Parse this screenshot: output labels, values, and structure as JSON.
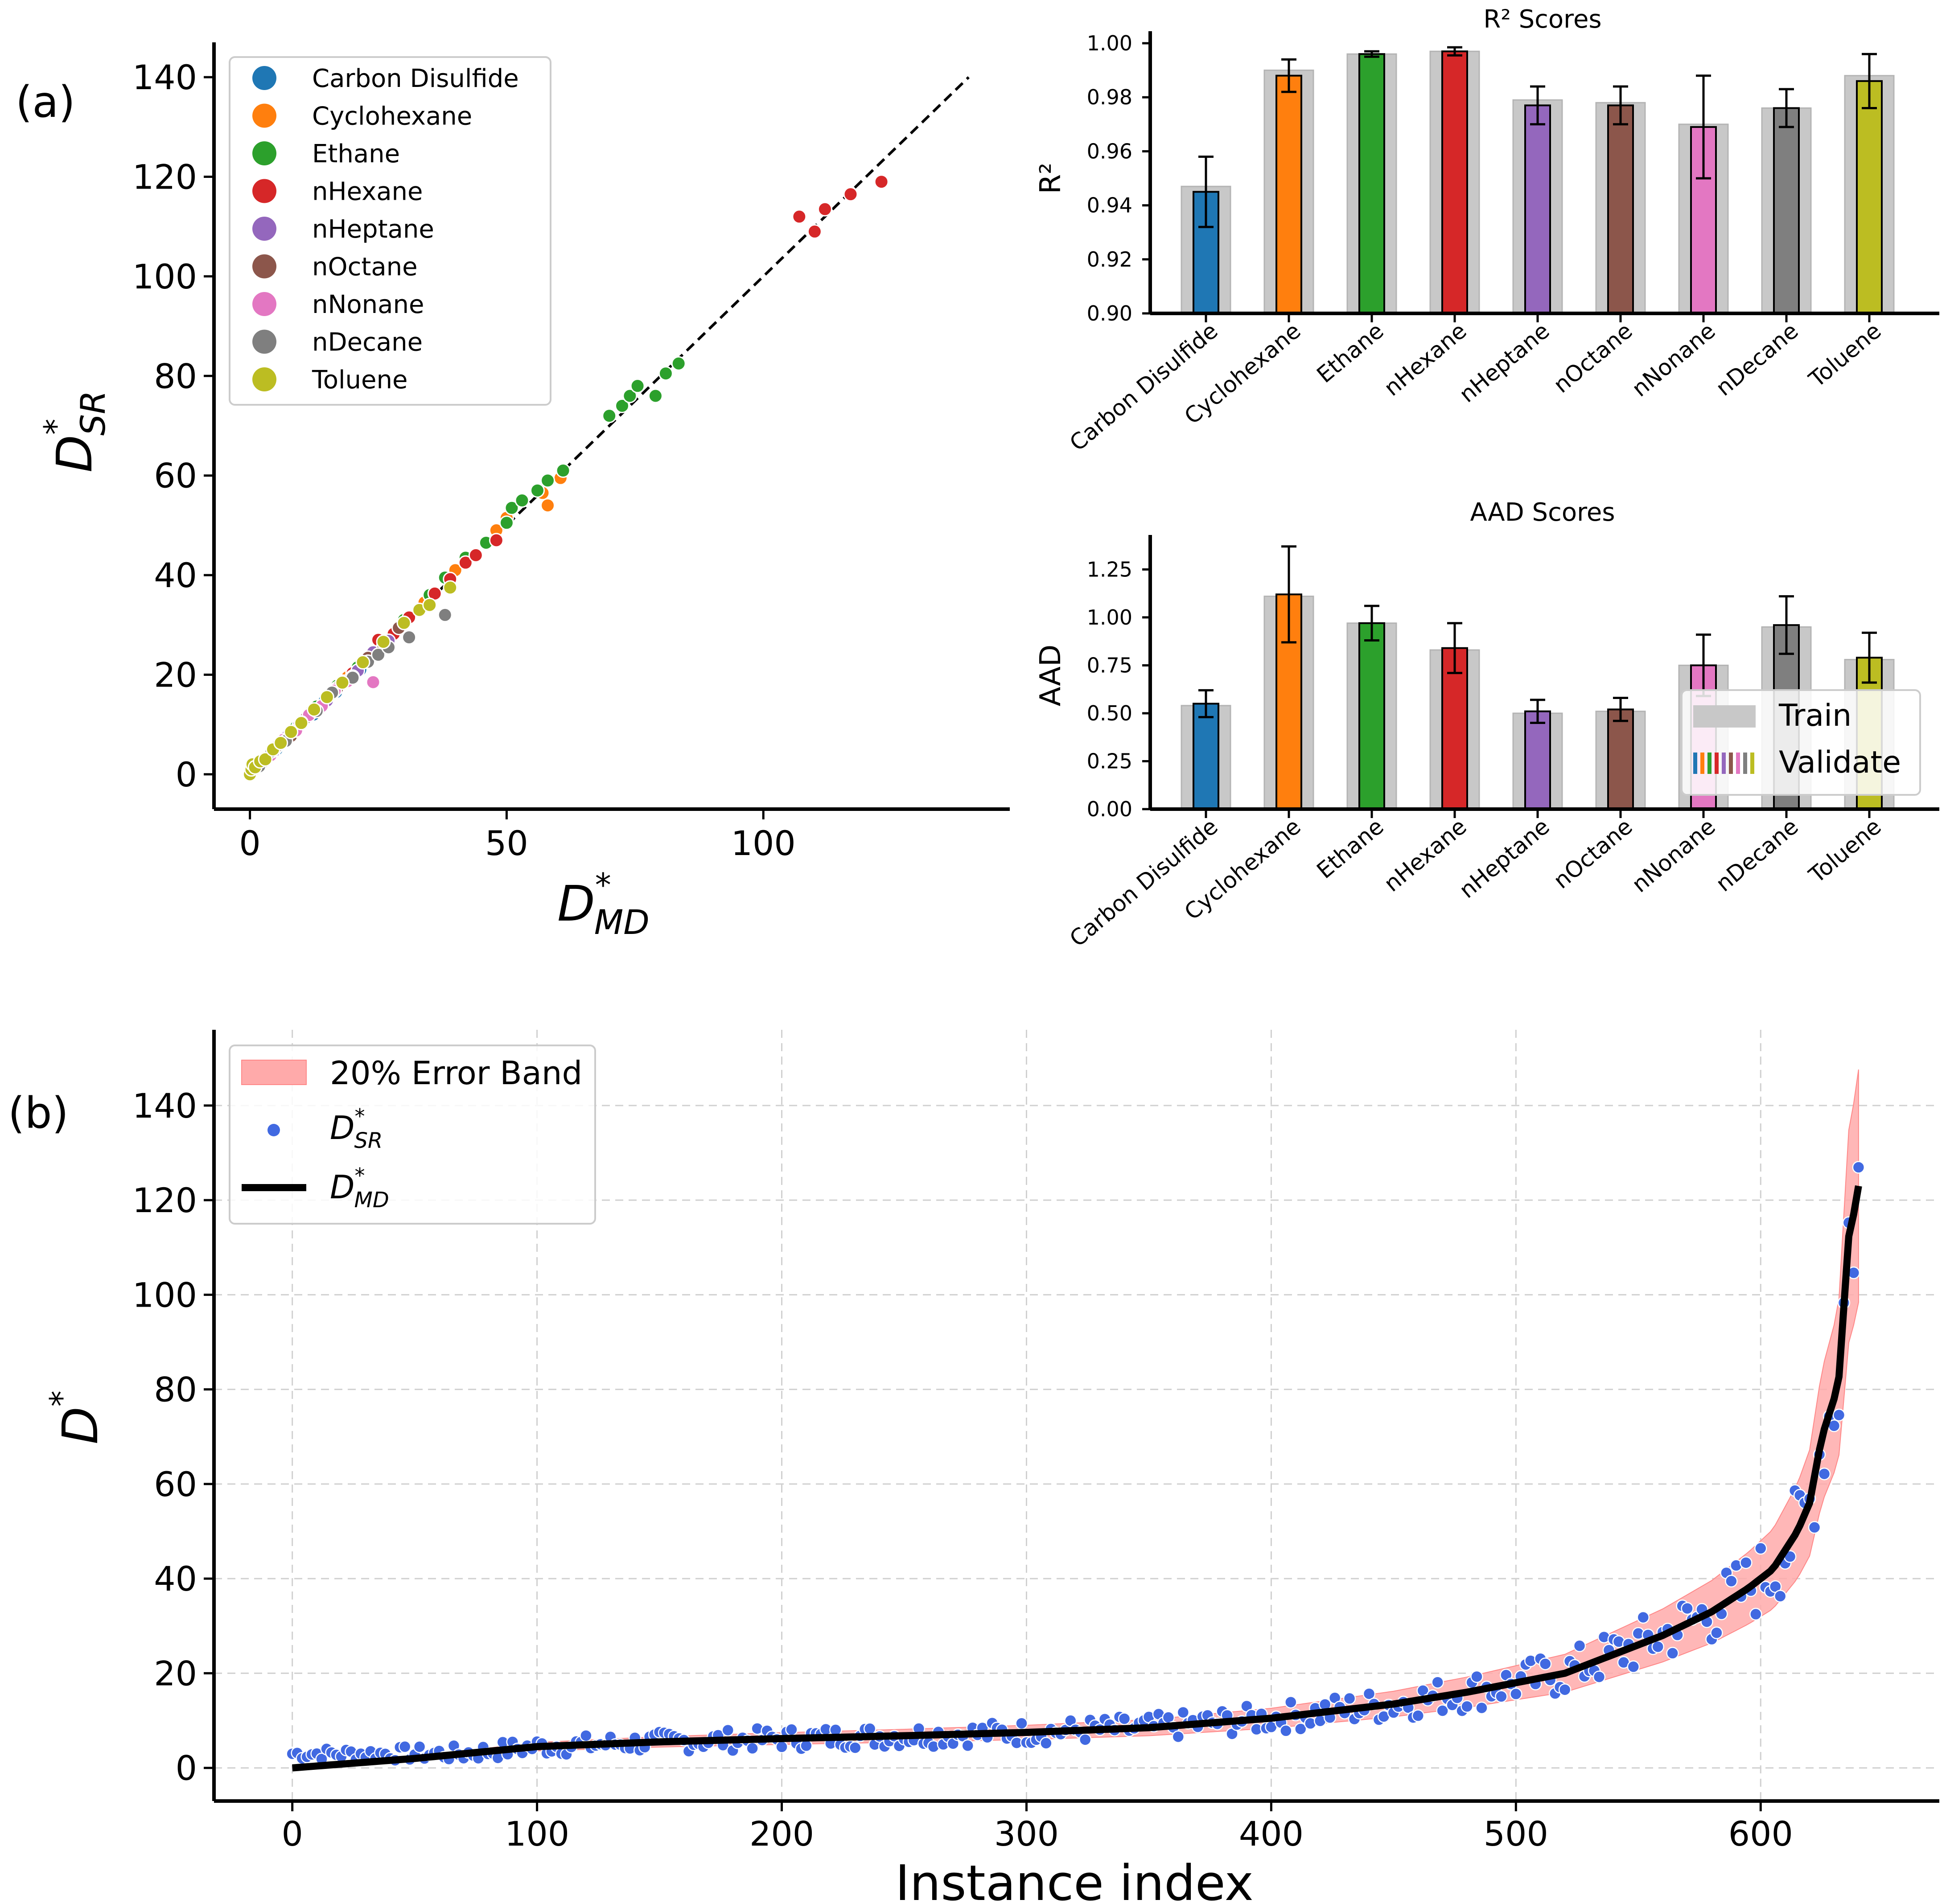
{
  "labels": {
    "panel_a": "(a)",
    "panel_b": "(b)"
  },
  "colors": {
    "Carbon Disulfide": "#1f77b4",
    "Cyclohexane": "#ff7f0e",
    "Ethane": "#2ca02c",
    "nHexane": "#d62728",
    "nHeptane": "#9467bd",
    "nOctane": "#8c564b",
    "nNonane": "#e377c2",
    "nDecane": "#7f7f7f",
    "Toluene": "#bcbd22",
    "train_bar": "#c8c8c8",
    "sr_points": "#4169e1",
    "error_band": "#ffaaaa"
  },
  "chart_data": [
    {
      "id": "parity",
      "type": "scatter",
      "xlabel_base": "D",
      "xlabel_sup": "*",
      "xlabel_sub": "MD",
      "ylabel_base": "D",
      "ylabel_sup": "*",
      "ylabel_sub": "SR",
      "xlim": [
        -7,
        148
      ],
      "ylim": [
        -7,
        147
      ],
      "xticks": [
        0,
        50,
        100
      ],
      "yticks": [
        0,
        20,
        40,
        60,
        80,
        100,
        120,
        140
      ],
      "reference_line": [
        [
          0,
          0
        ],
        [
          140,
          140
        ]
      ],
      "legend": [
        "Carbon Disulfide",
        "Cyclohexane",
        "Ethane",
        "nHexane",
        "nHeptane",
        "nOctane",
        "nNonane",
        "nDecane",
        "Toluene"
      ],
      "series": [
        {
          "name": "Carbon Disulfide",
          "points": [
            [
              1.2,
              1.5
            ],
            [
              2.5,
              2.4
            ],
            [
              3.6,
              3.9
            ],
            [
              5.2,
              5.0
            ],
            [
              6.8,
              7.1
            ],
            [
              8.5,
              8.3
            ],
            [
              10.2,
              10.6
            ],
            [
              12.4,
              12.0
            ],
            [
              14.6,
              14.9
            ],
            [
              16.8,
              16.5
            ],
            [
              19.3,
              19.6
            ],
            [
              21.5,
              21.0
            ]
          ]
        },
        {
          "name": "Cyclohexane",
          "points": [
            [
              1.0,
              1.1
            ],
            [
              3.0,
              3.3
            ],
            [
              5.5,
              5.8
            ],
            [
              8.0,
              8.4
            ],
            [
              10.5,
              11.0
            ],
            [
              13.0,
              13.4
            ],
            [
              16.0,
              16.2
            ],
            [
              19.0,
              19.5
            ],
            [
              22.0,
              22.6
            ],
            [
              26.0,
              26.5
            ],
            [
              30.0,
              30.8
            ],
            [
              34.0,
              34.5
            ],
            [
              40.0,
              41.0
            ],
            [
              48.0,
              49.0
            ],
            [
              50.0,
              51.5
            ],
            [
              57.0,
              56.5
            ],
            [
              60.5,
              59.5
            ],
            [
              58.0,
              54.0
            ]
          ]
        },
        {
          "name": "Ethane",
          "points": [
            [
              5.0,
              5.3
            ],
            [
              9.0,
              9.5
            ],
            [
              13.0,
              13.6
            ],
            [
              17.0,
              17.8
            ],
            [
              21.0,
              21.5
            ],
            [
              25.0,
              25.8
            ],
            [
              30.0,
              31.0
            ],
            [
              35.0,
              36.0
            ],
            [
              38.0,
              39.5
            ],
            [
              42.0,
              43.5
            ],
            [
              46.0,
              46.5
            ],
            [
              50.0,
              50.5
            ],
            [
              51.0,
              53.5
            ],
            [
              53.0,
              55.0
            ],
            [
              56.0,
              57.0
            ],
            [
              58.0,
              59.0
            ],
            [
              61.0,
              61.0
            ],
            [
              70.0,
              72.0
            ],
            [
              72.5,
              74.0
            ],
            [
              74.0,
              76.0
            ],
            [
              75.5,
              78.0
            ],
            [
              79.0,
              76.0
            ],
            [
              81.0,
              80.5
            ],
            [
              83.5,
              82.5
            ]
          ]
        },
        {
          "name": "nHexane",
          "points": [
            [
              4.0,
              4.2
            ],
            [
              8.0,
              8.1
            ],
            [
              12.0,
              12.4
            ],
            [
              16.0,
              16.5
            ],
            [
              20.0,
              20.3
            ],
            [
              24.0,
              24.6
            ],
            [
              25.0,
              27.0
            ],
            [
              28.0,
              28.2
            ],
            [
              31.0,
              31.5
            ],
            [
              36.0,
              36.3
            ],
            [
              39.0,
              39.2
            ],
            [
              42.0,
              42.5
            ],
            [
              44.0,
              44.0
            ],
            [
              48.0,
              47.0
            ],
            [
              107.0,
              112.0
            ],
            [
              110.0,
              109.0
            ],
            [
              112.0,
              113.5
            ],
            [
              117.0,
              116.5
            ],
            [
              123.0,
              119.0
            ]
          ]
        },
        {
          "name": "nHeptane",
          "points": [
            [
              2.0,
              2.3
            ],
            [
              4.5,
              4.4
            ],
            [
              7.0,
              7.4
            ],
            [
              9.5,
              9.7
            ],
            [
              12.0,
              12.6
            ],
            [
              15.0,
              14.8
            ],
            [
              18.0,
              18.6
            ],
            [
              21.0,
              20.8
            ],
            [
              24.0,
              24.5
            ],
            [
              27.0,
              26.8
            ]
          ]
        },
        {
          "name": "nOctane",
          "points": [
            [
              2.2,
              2.0
            ],
            [
              5.0,
              5.4
            ],
            [
              8.0,
              7.7
            ],
            [
              11.0,
              11.4
            ],
            [
              14.0,
              13.6
            ],
            [
              17.0,
              17.3
            ],
            [
              20.0,
              19.6
            ],
            [
              23.0,
              23.4
            ],
            [
              26.0,
              25.7
            ],
            [
              29.0,
              29.4
            ]
          ]
        },
        {
          "name": "nNonane",
          "points": [
            [
              1.5,
              1.8
            ],
            [
              4.0,
              3.8
            ],
            [
              6.5,
              6.9
            ],
            [
              9.0,
              8.8
            ],
            [
              11.5,
              11.9
            ],
            [
              14.0,
              13.7
            ],
            [
              16.5,
              16.8
            ],
            [
              19.0,
              18.7
            ],
            [
              24.0,
              18.5
            ]
          ]
        },
        {
          "name": "nDecane",
          "points": [
            [
              1.8,
              1.6
            ],
            [
              4.2,
              4.6
            ],
            [
              7.0,
              6.7
            ],
            [
              10.0,
              10.4
            ],
            [
              13.0,
              12.7
            ],
            [
              16.0,
              16.4
            ],
            [
              20.0,
              19.4
            ],
            [
              23.0,
              22.6
            ],
            [
              25.0,
              24.0
            ],
            [
              27.0,
              25.5
            ],
            [
              31.0,
              27.5
            ],
            [
              38.0,
              32.0
            ]
          ]
        },
        {
          "name": "Toluene",
          "points": [
            [
              0.0,
              0.0
            ],
            [
              0.3,
              1.0
            ],
            [
              0.5,
              2.0
            ],
            [
              1.0,
              1.4
            ],
            [
              2.0,
              2.6
            ],
            [
              3.0,
              3.0
            ],
            [
              4.5,
              5.0
            ],
            [
              6.0,
              6.3
            ],
            [
              8.0,
              8.5
            ],
            [
              10.0,
              10.3
            ],
            [
              12.5,
              13.0
            ],
            [
              15.0,
              15.5
            ],
            [
              18.0,
              18.4
            ],
            [
              22.0,
              22.5
            ],
            [
              26.0,
              26.6
            ],
            [
              30.0,
              30.4
            ],
            [
              33.0,
              33.0
            ],
            [
              35.0,
              34.0
            ],
            [
              39.0,
              37.5
            ]
          ]
        }
      ]
    },
    {
      "id": "r2",
      "type": "bar",
      "title": "R² Scores",
      "ylabel": "R²",
      "categories": [
        "Carbon Disulfide",
        "Cyclohexane",
        "Ethane",
        "nHexane",
        "nHeptane",
        "nOctane",
        "nNonane",
        "nDecane",
        "Toluene"
      ],
      "ylim": [
        0.9,
        1.0
      ],
      "yticks": [
        "0.90",
        "0.92",
        "0.94",
        "0.96",
        "0.98",
        "1.00"
      ],
      "series": [
        {
          "name": "Train",
          "values": [
            0.947,
            0.99,
            0.996,
            0.997,
            0.979,
            0.978,
            0.97,
            0.976,
            0.988
          ]
        },
        {
          "name": "Validate",
          "values": [
            0.945,
            0.988,
            0.996,
            0.997,
            0.977,
            0.977,
            0.969,
            0.976,
            0.986
          ],
          "errors": [
            0.013,
            0.006,
            0.001,
            0.0015,
            0.007,
            0.007,
            0.019,
            0.007,
            0.01
          ]
        }
      ]
    },
    {
      "id": "aad",
      "type": "bar",
      "title": "AAD Scores",
      "ylabel": "AAD",
      "categories": [
        "Carbon Disulfide",
        "Cyclohexane",
        "Ethane",
        "nHexane",
        "nHeptane",
        "nOctane",
        "nNonane",
        "nDecane",
        "Toluene"
      ],
      "ylim": [
        0.0,
        1.43
      ],
      "yticks": [
        "0.00",
        "0.25",
        "0.50",
        "0.75",
        "1.00",
        "1.25"
      ],
      "legend": [
        "Train",
        "Validate"
      ],
      "series": [
        {
          "name": "Train",
          "values": [
            0.54,
            1.11,
            0.97,
            0.83,
            0.5,
            0.51,
            0.75,
            0.95,
            0.78
          ]
        },
        {
          "name": "Validate",
          "values": [
            0.55,
            1.12,
            0.97,
            0.84,
            0.51,
            0.52,
            0.75,
            0.96,
            0.79
          ],
          "errors": [
            0.07,
            0.25,
            0.09,
            0.13,
            0.06,
            0.06,
            0.16,
            0.15,
            0.13
          ]
        }
      ]
    },
    {
      "id": "instance",
      "type": "line",
      "xlabel": "Instance index",
      "ylabel_base": "D",
      "ylabel_sup": "*",
      "xlim": [
        -32,
        673
      ],
      "ylim": [
        -7,
        156
      ],
      "xticks": [
        0,
        100,
        200,
        300,
        400,
        500,
        600
      ],
      "yticks": [
        0,
        20,
        40,
        60,
        80,
        100,
        120,
        140
      ],
      "grid": true,
      "legend_position": "top-left",
      "legend": {
        "band": "20% Error Band",
        "sr_base": "D",
        "sr_sup": "*",
        "sr_sub": "SR",
        "md_base": "D",
        "md_sup": "*",
        "md_sub": "MD"
      },
      "md_curve": [
        [
          0,
          0.0
        ],
        [
          50,
          2.0
        ],
        [
          100,
          4.5
        ],
        [
          150,
          5.5
        ],
        [
          200,
          6.2
        ],
        [
          250,
          6.8
        ],
        [
          300,
          7.5
        ],
        [
          350,
          8.5
        ],
        [
          400,
          10.5
        ],
        [
          450,
          13.5
        ],
        [
          480,
          16.0
        ],
        [
          500,
          18.0
        ],
        [
          520,
          20.0
        ],
        [
          540,
          24.0
        ],
        [
          560,
          28.0
        ],
        [
          580,
          33.0
        ],
        [
          595,
          38.0
        ],
        [
          605,
          42.0
        ],
        [
          615,
          50.0
        ],
        [
          620,
          56.0
        ],
        [
          625,
          70.0
        ],
        [
          630,
          78.0
        ],
        [
          633,
          85.0
        ],
        [
          635,
          110.0
        ],
        [
          638,
          117.0
        ],
        [
          640,
          123.0
        ]
      ],
      "band_fraction": 0.2
    }
  ]
}
